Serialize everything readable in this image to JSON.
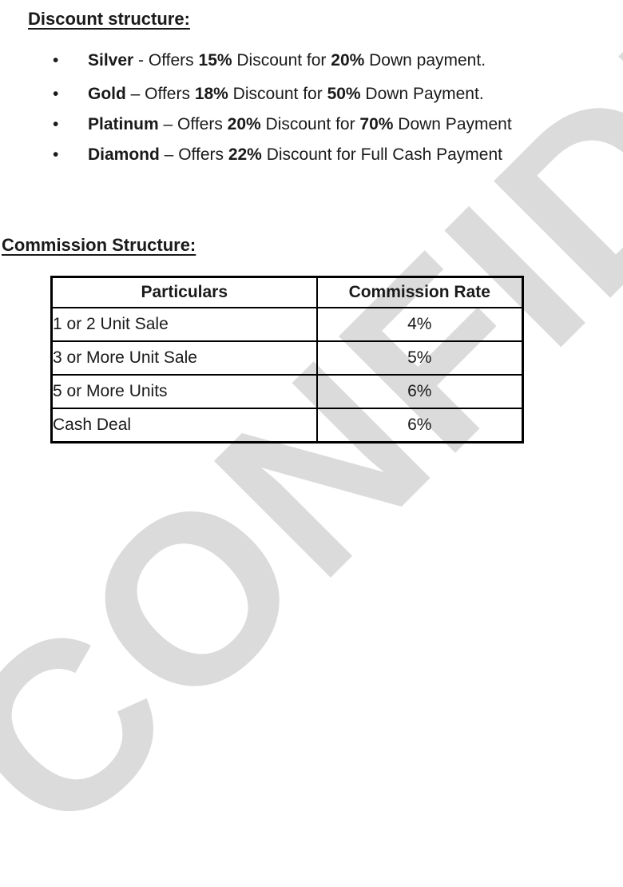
{
  "watermark": {
    "text": "CONFIDENTIAL",
    "color": "#dbdbdb"
  },
  "bullet_glyph": "•",
  "discount": {
    "heading": "Discount structure:",
    "items": [
      {
        "s0": "Silver",
        "s1": " - Offers ",
        "s2": "15%",
        "s3": " Discount for ",
        "s4": "20%",
        "s5": " Down payment."
      },
      {
        "s0": "Gold",
        "s1": " – Offers ",
        "s2": "18%",
        "s3": " Discount for ",
        "s4": "50%",
        "s5": " Down Payment."
      },
      {
        "s0": "Platinum",
        "s1": " – Offers ",
        "s2": "20%",
        "s3": " Discount for ",
        "s4": "70%",
        "s5": " Down Payment"
      },
      {
        "s0": "Diamond",
        "s1": " – Offers ",
        "s2": "22%",
        "s3": " Discount for ",
        "s4": "",
        "s5": "Full Cash Payment"
      }
    ]
  },
  "commission": {
    "heading": "Commission Structure:",
    "table": {
      "headers": [
        "Particulars",
        "Commission Rate"
      ],
      "rows": [
        [
          "1 or 2 Unit Sale",
          "4%"
        ],
        [
          "3 or More Unit Sale",
          "5%"
        ],
        [
          "5 or More Units",
          "6%"
        ],
        [
          "Cash Deal",
          "6%"
        ]
      ]
    }
  }
}
